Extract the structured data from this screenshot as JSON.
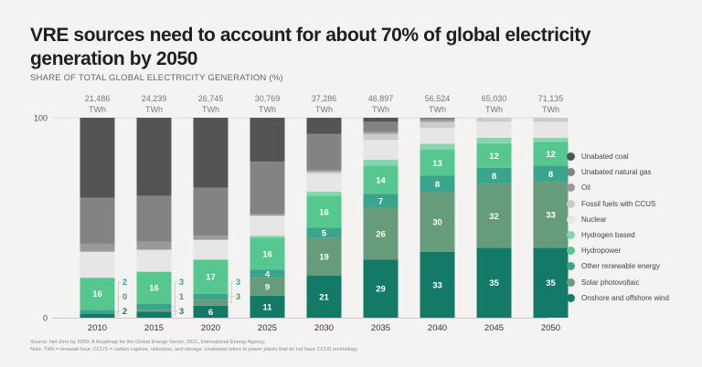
{
  "title": "VRE sources need to account for about 70% of global electricity generation by 2050",
  "subtitle": "SHARE OF TOTAL GLOBAL ELECTRICITY GENERATION (%)",
  "source": "Source: Net Zero by 2050: A Roadmap for the Global Energy Sector, 2021, International Energy Agency.",
  "note": "Note: TWh = terawatt-hour; CCUS = carbon capture, utilization, and storage. Unabated refers to power plants that do not have CCUS technology.",
  "chart_data": {
    "type": "bar",
    "stacked": true,
    "title": "VRE sources need to account for about 70% of global electricity generation by 2050",
    "ylabel": "SHARE OF TOTAL GLOBAL ELECTRICITY GENERATION (%)",
    "xlabel": "",
    "ylim": [
      0,
      100
    ],
    "yticks": [
      "0",
      "100"
    ],
    "grid": false,
    "legend_position": "right",
    "categories": [
      "2010",
      "2015",
      "2020",
      "2025",
      "2030",
      "2035",
      "2040",
      "2045",
      "2050"
    ],
    "totals": [
      "21,486",
      "24,239",
      "26,745",
      "30,769",
      "37,286",
      "46,897",
      "56,524",
      "65,030",
      "71,135"
    ],
    "total_unit": "TWh",
    "series": [
      {
        "name": "Onshore and offshore wind",
        "color": "#137a67",
        "values": [
          2,
          3,
          6,
          11,
          21,
          29,
          33,
          35,
          35
        ]
      },
      {
        "name": "Solar photovoltaic",
        "color": "#669b7b",
        "values": [
          0,
          1,
          3,
          9,
          19,
          26,
          30,
          32,
          33
        ]
      },
      {
        "name": "Other renewable energy",
        "color": "#3aa48c",
        "values": [
          2,
          3,
          3,
          4,
          5,
          7,
          8,
          8,
          8
        ]
      },
      {
        "name": "Hydropower",
        "color": "#56c78f",
        "values": [
          16,
          16,
          17,
          16,
          16,
          14,
          13,
          12,
          12
        ]
      },
      {
        "name": "Hydrogen based",
        "color": "#86d6ac",
        "values": [
          0,
          0,
          0,
          1,
          2,
          3,
          3,
          3,
          2
        ]
      },
      {
        "name": "Nuclear",
        "color": "#e6e6e6",
        "values": [
          13,
          11,
          10,
          10,
          9,
          10,
          8,
          8,
          8
        ]
      },
      {
        "name": "Fossil fuels with CCUS",
        "color": "#cbcbcb",
        "values": [
          0,
          0,
          0,
          0,
          1,
          3,
          3,
          2,
          2
        ]
      },
      {
        "name": "Oil",
        "color": "#9a9a9a",
        "values": [
          4,
          4,
          2,
          1,
          1,
          1,
          1,
          0,
          0
        ]
      },
      {
        "name": "Unabated natural gas",
        "color": "#838383",
        "values": [
          23,
          23,
          24,
          26,
          18,
          5,
          1,
          0,
          0
        ]
      },
      {
        "name": "Unabated coal",
        "color": "#545454",
        "values": [
          40,
          39,
          35,
          22,
          8,
          2,
          0,
          0,
          0
        ]
      }
    ],
    "labels": [
      {
        "category": "2010",
        "series": "Hydropower",
        "text": "16",
        "inside": true
      },
      {
        "category": "2010",
        "series": "Other renewable energy",
        "text": "2",
        "inside": false
      },
      {
        "category": "2010",
        "series": "Solar photovoltaic",
        "text": "0",
        "inside": false
      },
      {
        "category": "2010",
        "series": "Onshore and offshore wind",
        "text": "2",
        "inside": false
      },
      {
        "category": "2015",
        "series": "Hydropower",
        "text": "16",
        "inside": true
      },
      {
        "category": "2015",
        "series": "Other renewable energy",
        "text": "3",
        "inside": false
      },
      {
        "category": "2015",
        "series": "Solar photovoltaic",
        "text": "1",
        "inside": false
      },
      {
        "category": "2015",
        "series": "Onshore and offshore wind",
        "text": "3",
        "inside": false
      },
      {
        "category": "2020",
        "series": "Hydropower",
        "text": "17",
        "inside": true
      },
      {
        "category": "2020",
        "series": "Other renewable energy",
        "text": "3",
        "inside": false
      },
      {
        "category": "2020",
        "series": "Solar photovoltaic",
        "text": "3",
        "inside": false
      },
      {
        "category": "2020",
        "series": "Onshore and offshore wind",
        "text": "6",
        "inside": true
      },
      {
        "category": "2025",
        "series": "Hydropower",
        "text": "16",
        "inside": true
      },
      {
        "category": "2025",
        "series": "Other renewable energy",
        "text": "4",
        "inside": true
      },
      {
        "category": "2025",
        "series": "Solar photovoltaic",
        "text": "9",
        "inside": true
      },
      {
        "category": "2025",
        "series": "Onshore and offshore wind",
        "text": "11",
        "inside": true
      },
      {
        "category": "2030",
        "series": "Hydropower",
        "text": "16",
        "inside": true
      },
      {
        "category": "2030",
        "series": "Other renewable energy",
        "text": "5",
        "inside": true
      },
      {
        "category": "2030",
        "series": "Solar photovoltaic",
        "text": "19",
        "inside": true
      },
      {
        "category": "2030",
        "series": "Onshore and offshore wind",
        "text": "21",
        "inside": true
      },
      {
        "category": "2035",
        "series": "Hydropower",
        "text": "14",
        "inside": true
      },
      {
        "category": "2035",
        "series": "Other renewable energy",
        "text": "7",
        "inside": true
      },
      {
        "category": "2035",
        "series": "Solar photovoltaic",
        "text": "26",
        "inside": true
      },
      {
        "category": "2035",
        "series": "Onshore and offshore wind",
        "text": "29",
        "inside": true
      },
      {
        "category": "2040",
        "series": "Hydropower",
        "text": "13",
        "inside": true
      },
      {
        "category": "2040",
        "series": "Other renewable energy",
        "text": "8",
        "inside": true
      },
      {
        "category": "2040",
        "series": "Solar photovoltaic",
        "text": "30",
        "inside": true
      },
      {
        "category": "2040",
        "series": "Onshore and offshore wind",
        "text": "33",
        "inside": true
      },
      {
        "category": "2045",
        "series": "Hydropower",
        "text": "12",
        "inside": true
      },
      {
        "category": "2045",
        "series": "Other renewable energy",
        "text": "8",
        "inside": true
      },
      {
        "category": "2045",
        "series": "Solar photovoltaic",
        "text": "32",
        "inside": true
      },
      {
        "category": "2045",
        "series": "Onshore and offshore wind",
        "text": "35",
        "inside": true
      },
      {
        "category": "2050",
        "series": "Hydropower",
        "text": "12",
        "inside": true
      },
      {
        "category": "2050",
        "series": "Other renewable energy",
        "text": "8",
        "inside": true
      },
      {
        "category": "2050",
        "series": "Solar photovoltaic",
        "text": "33",
        "inside": true
      },
      {
        "category": "2050",
        "series": "Onshore and offshore wind",
        "text": "35",
        "inside": true
      }
    ],
    "legend": [
      "Unabated coal",
      "Unabated natural gas",
      "Oil",
      "Fossil fuels with CCUS",
      "Nuclear",
      "Hydrogen based",
      "Hydropower",
      "Other renewable energy",
      "Solar photovoltaic",
      "Onshore and offshore wind"
    ]
  }
}
